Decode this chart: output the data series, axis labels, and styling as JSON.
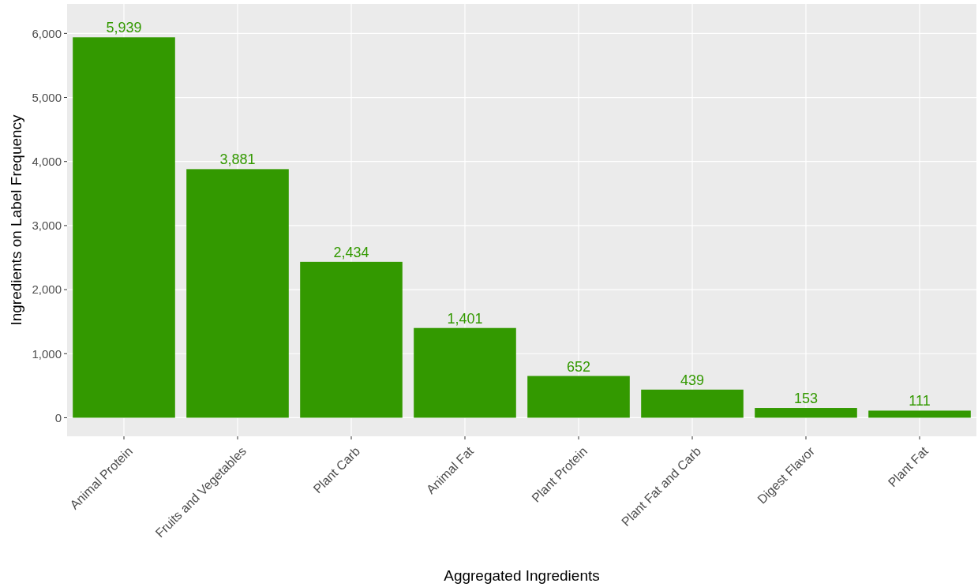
{
  "chart_data": {
    "type": "bar",
    "xlabel": "Aggregated Ingredients",
    "ylabel": "Ingredients on Label Frequency",
    "categories": [
      "Animal Protein",
      "Fruits and Vegetables",
      "Plant Carb",
      "Animal Fat",
      "Plant Protein",
      "Plant Fat and Carb",
      "Digest Flavor",
      "Plant Fat"
    ],
    "values": [
      5939,
      3881,
      2434,
      1401,
      652,
      439,
      153,
      111
    ],
    "color": "#339900",
    "value_labels": [
      "5,939",
      "3,881",
      "2,434",
      "1,401",
      "652",
      "439",
      "153",
      "111"
    ],
    "ylim": [
      -290,
      6460
    ],
    "yticks": [
      {
        "value": 0,
        "label": "0"
      },
      {
        "value": 1000,
        "label": "1,000"
      },
      {
        "value": 2000,
        "label": "2,000"
      },
      {
        "value": 3000,
        "label": "3,000"
      },
      {
        "value": 4000,
        "label": "4,000"
      },
      {
        "value": 5000,
        "label": "5,000"
      },
      {
        "value": 6000,
        "label": "6,000"
      }
    ],
    "grid": true
  }
}
